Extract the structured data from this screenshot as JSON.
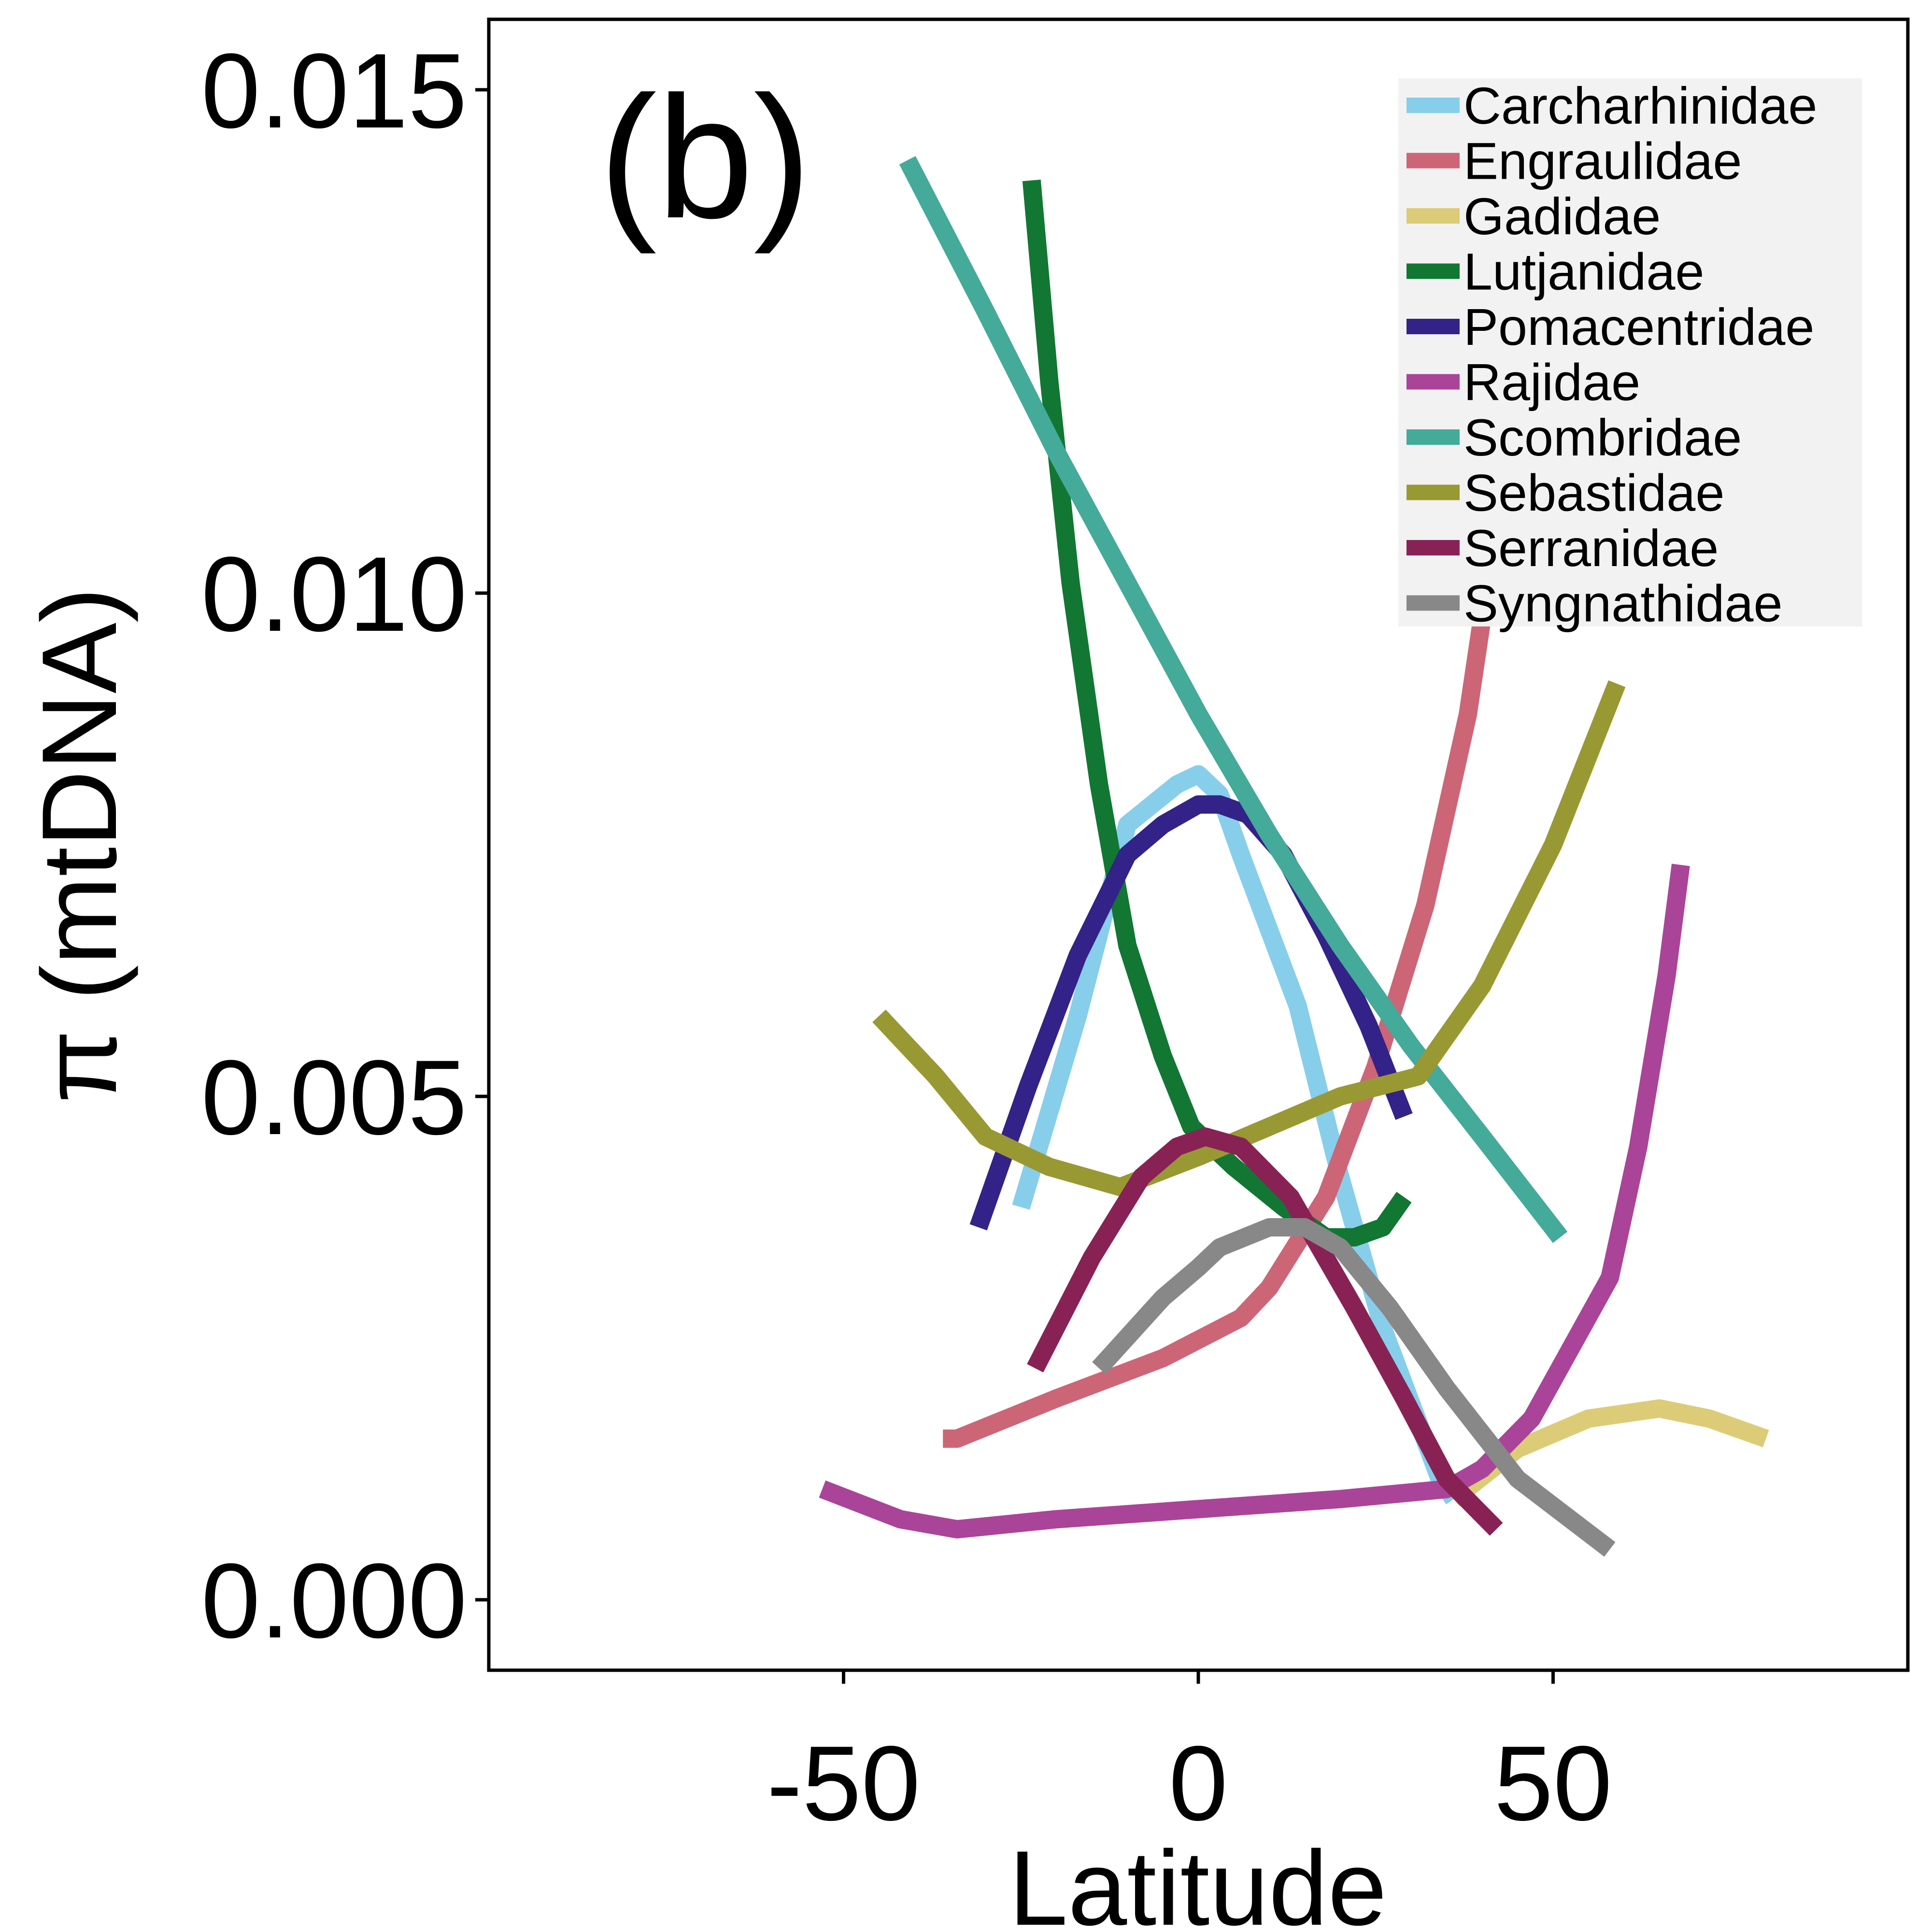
{
  "chart_data": {
    "type": "line",
    "panel_label": "(b)",
    "xlabel": "Latitude",
    "ylabel": "π (mtDNA)",
    "xlim": [
      -100,
      100
    ],
    "ylim": [
      -0.0007,
      0.0157
    ],
    "xticks": [
      -50,
      0,
      50
    ],
    "xtick_labels": [
      "-50",
      "0",
      "50"
    ],
    "yticks": [
      0.0,
      0.005,
      0.01,
      0.015
    ],
    "ytick_labels": [
      "0.000",
      "0.005",
      "0.010",
      "0.015"
    ],
    "grid": false,
    "legend_position": "top-right",
    "series": [
      {
        "name": "Carcharhinidae",
        "color": "#87CEEB",
        "x": [
          -25,
          -17,
          -10,
          -3,
          0,
          3,
          6,
          14,
          20,
          26,
          34,
          36
        ],
        "y": [
          0.0039,
          0.0058,
          0.0077,
          0.0081,
          0.0082,
          0.008,
          0.0074,
          0.0059,
          0.0042,
          0.0027,
          0.0012,
          0.001
        ]
      },
      {
        "name": "Engraulidae",
        "color": "#CC6677",
        "x": [
          -36,
          -34,
          -20,
          -5,
          6,
          10,
          18,
          25,
          32,
          38,
          42
        ],
        "y": [
          0.0016,
          0.0016,
          0.002,
          0.0024,
          0.0028,
          0.0031,
          0.004,
          0.0053,
          0.0069,
          0.0088,
          0.0107
        ]
      },
      {
        "name": "Gadidae",
        "color": "#DDCC77",
        "x": [
          36,
          45,
          55,
          65,
          72,
          80
        ],
        "y": [
          0.001,
          0.0015,
          0.0018,
          0.0019,
          0.0018,
          0.0016
        ]
      },
      {
        "name": "Lutjanidae",
        "color": "#117733",
        "x": [
          -23.5,
          -21,
          -18,
          -14,
          -10,
          -5,
          -1,
          5,
          12,
          18,
          22,
          26,
          29
        ],
        "y": [
          0.0141,
          0.0121,
          0.0101,
          0.0081,
          0.0065,
          0.0054,
          0.0047,
          0.0043,
          0.0039,
          0.0036,
          0.0036,
          0.0037,
          0.004
        ]
      },
      {
        "name": "Pomacentridae",
        "color": "#332288",
        "x": [
          -31,
          -24,
          -17,
          -10,
          -5,
          0,
          3,
          7,
          12,
          18,
          24,
          29
        ],
        "y": [
          0.0037,
          0.0051,
          0.0064,
          0.0074,
          0.0077,
          0.0079,
          0.0079,
          0.0078,
          0.0074,
          0.0066,
          0.0057,
          0.0048
        ]
      },
      {
        "name": "Rajidae",
        "color": "#AA4499",
        "x": [
          -53,
          -42,
          -34,
          -20,
          0,
          20,
          35,
          40,
          47,
          58,
          62,
          66,
          68
        ],
        "y": [
          0.0011,
          0.0008,
          0.0007,
          0.0008,
          0.0009,
          0.001,
          0.0011,
          0.0013,
          0.0018,
          0.0032,
          0.0045,
          0.0062,
          0.0073
        ]
      },
      {
        "name": "Scombridae",
        "color": "#44AA99",
        "x": [
          -41,
          -30,
          -20,
          -10,
          0,
          10,
          20,
          30,
          40,
          51
        ],
        "y": [
          0.0143,
          0.0128,
          0.0114,
          0.0101,
          0.0088,
          0.0076,
          0.0065,
          0.0055,
          0.0046,
          0.0036
        ]
      },
      {
        "name": "Sebastidae",
        "color": "#999933",
        "x": [
          -45,
          -37,
          -30,
          -21,
          -11,
          0,
          10,
          20,
          31,
          40,
          50,
          59
        ],
        "y": [
          0.0058,
          0.0052,
          0.0046,
          0.0043,
          0.0041,
          0.0044,
          0.0047,
          0.005,
          0.0052,
          0.0061,
          0.0075,
          0.0091
        ]
      },
      {
        "name": "Serranidae",
        "color": "#882255",
        "x": [
          -23,
          -15,
          -8,
          -3,
          1,
          6,
          13,
          22,
          29,
          35,
          42
        ],
        "y": [
          0.0023,
          0.0034,
          0.0042,
          0.0045,
          0.0046,
          0.0045,
          0.004,
          0.0029,
          0.002,
          0.0012,
          0.0007
        ]
      },
      {
        "name": "Syngnathidae",
        "color": "#888888",
        "x": [
          -14,
          -5,
          0,
          3,
          10,
          15,
          20,
          27,
          35,
          45,
          58
        ],
        "y": [
          0.0023,
          0.003,
          0.0033,
          0.0035,
          0.0037,
          0.0037,
          0.0035,
          0.0029,
          0.0021,
          0.0012,
          0.0005
        ]
      }
    ]
  }
}
